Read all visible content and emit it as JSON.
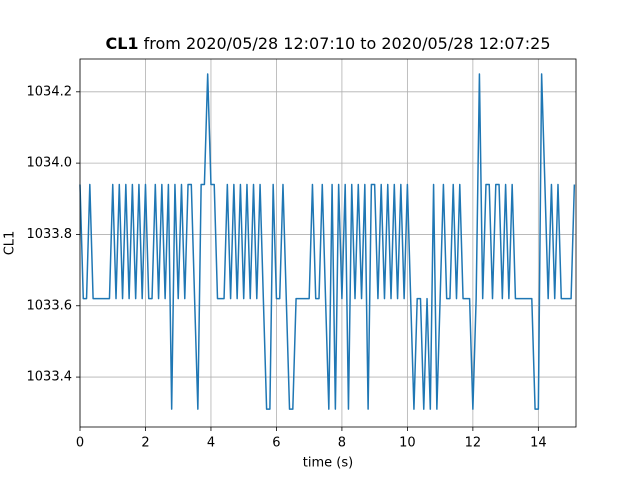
{
  "chart_data": {
    "type": "line",
    "title": {
      "bold": "CL1",
      "rest": "from 2020/05/28 12:07:10 to 2020/05/28 12:07:25"
    },
    "x_label": "time (s)",
    "y_label": "CL1",
    "xlim": [
      0,
      15.15
    ],
    "ylim": [
      1033.26,
      1034.292
    ],
    "xticks": [
      0,
      2,
      4,
      6,
      8,
      10,
      12,
      14
    ],
    "yticks": [
      1033.4,
      1033.6,
      1033.8,
      {
        "value": 1034,
        "label": "1034.0"
      },
      1034.2
    ],
    "grid": true,
    "series": [
      {
        "name": "CL1",
        "color": "#1f77b4",
        "x": [
          0,
          0.1,
          0.2,
          0.3,
          0.4,
          0.5,
          0.6,
          0.7,
          0.8,
          0.9,
          1,
          1.1,
          1.2,
          1.3,
          1.4,
          1.5,
          1.6,
          1.7,
          1.8,
          1.9,
          2,
          2.1,
          2.2,
          2.3,
          2.4,
          2.5,
          2.6,
          2.7,
          2.8,
          2.9,
          3,
          3.1,
          3.2,
          3.3,
          3.4,
          3.5,
          3.6,
          3.7,
          3.8,
          3.9,
          4,
          4.1,
          4.2,
          4.3,
          4.4,
          4.5,
          4.6,
          4.7,
          4.8,
          4.9,
          5,
          5.1,
          5.2,
          5.3,
          5.4,
          5.5,
          5.6,
          5.7,
          5.8,
          5.9,
          6,
          6.1,
          6.2,
          6.3,
          6.4,
          6.5,
          6.6,
          6.7,
          6.8,
          6.9,
          7,
          7.1,
          7.2,
          7.3,
          7.4,
          7.5,
          7.6,
          7.7,
          7.8,
          7.9,
          8,
          8.1,
          8.2,
          8.3,
          8.4,
          8.5,
          8.6,
          8.7,
          8.8,
          8.9,
          9,
          9.1,
          9.2,
          9.3,
          9.4,
          9.5,
          9.6,
          9.7,
          9.8,
          9.9,
          10,
          10.1,
          10.2,
          10.3,
          10.4,
          10.5,
          10.6,
          10.7,
          10.8,
          10.9,
          11,
          11.1,
          11.2,
          11.3,
          11.4,
          11.5,
          11.6,
          11.7,
          11.8,
          11.9,
          12,
          12.1,
          12.2,
          12.3,
          12.4,
          12.5,
          12.6,
          12.7,
          12.8,
          12.9,
          13,
          13.1,
          13.2,
          13.3,
          13.4,
          13.5,
          13.6,
          13.7,
          13.8,
          13.9,
          14,
          14.1,
          14.2,
          14.3,
          14.4,
          14.5,
          14.6,
          14.7,
          14.8,
          14.9,
          15,
          15.1
        ],
        "values": [
          1033.94,
          1033.62,
          1033.62,
          1033.94,
          1033.62,
          1033.62,
          1033.62,
          1033.62,
          1033.62,
          1033.62,
          1033.94,
          1033.62,
          1033.94,
          1033.62,
          1033.94,
          1033.62,
          1033.94,
          1033.62,
          1033.94,
          1033.62,
          1033.94,
          1033.62,
          1033.62,
          1033.94,
          1033.62,
          1033.94,
          1033.62,
          1033.94,
          1033.31,
          1033.94,
          1033.62,
          1033.94,
          1033.62,
          1033.94,
          1033.94,
          1033.62,
          1033.31,
          1033.94,
          1033.94,
          1034.25,
          1033.94,
          1033.94,
          1033.62,
          1033.62,
          1033.62,
          1033.94,
          1033.62,
          1033.94,
          1033.62,
          1033.94,
          1033.62,
          1033.94,
          1033.62,
          1033.94,
          1033.62,
          1033.94,
          1033.62,
          1033.31,
          1033.31,
          1033.94,
          1033.62,
          1033.62,
          1033.94,
          1033.62,
          1033.31,
          1033.31,
          1033.62,
          1033.62,
          1033.62,
          1033.62,
          1033.62,
          1033.94,
          1033.62,
          1033.62,
          1033.94,
          1033.62,
          1033.31,
          1033.94,
          1033.31,
          1033.94,
          1033.62,
          1033.94,
          1033.31,
          1033.94,
          1033.62,
          1033.94,
          1033.62,
          1033.94,
          1033.31,
          1033.94,
          1033.94,
          1033.62,
          1033.94,
          1033.62,
          1033.94,
          1033.62,
          1033.94,
          1033.62,
          1033.94,
          1033.62,
          1033.94,
          1033.62,
          1033.31,
          1033.62,
          1033.62,
          1033.31,
          1033.62,
          1033.31,
          1033.94,
          1033.31,
          1033.62,
          1033.94,
          1033.62,
          1033.62,
          1033.94,
          1033.62,
          1033.94,
          1033.62,
          1033.62,
          1033.62,
          1033.31,
          1033.62,
          1034.25,
          1033.62,
          1033.94,
          1033.94,
          1033.62,
          1033.94,
          1033.94,
          1033.62,
          1033.94,
          1033.62,
          1033.94,
          1033.62,
          1033.62,
          1033.62,
          1033.62,
          1033.62,
          1033.62,
          1033.31,
          1033.31,
          1034.25,
          1033.94,
          1033.62,
          1033.94,
          1033.62,
          1033.94,
          1033.62,
          1033.62,
          1033.62,
          1033.62,
          1033.94
        ]
      }
    ]
  }
}
